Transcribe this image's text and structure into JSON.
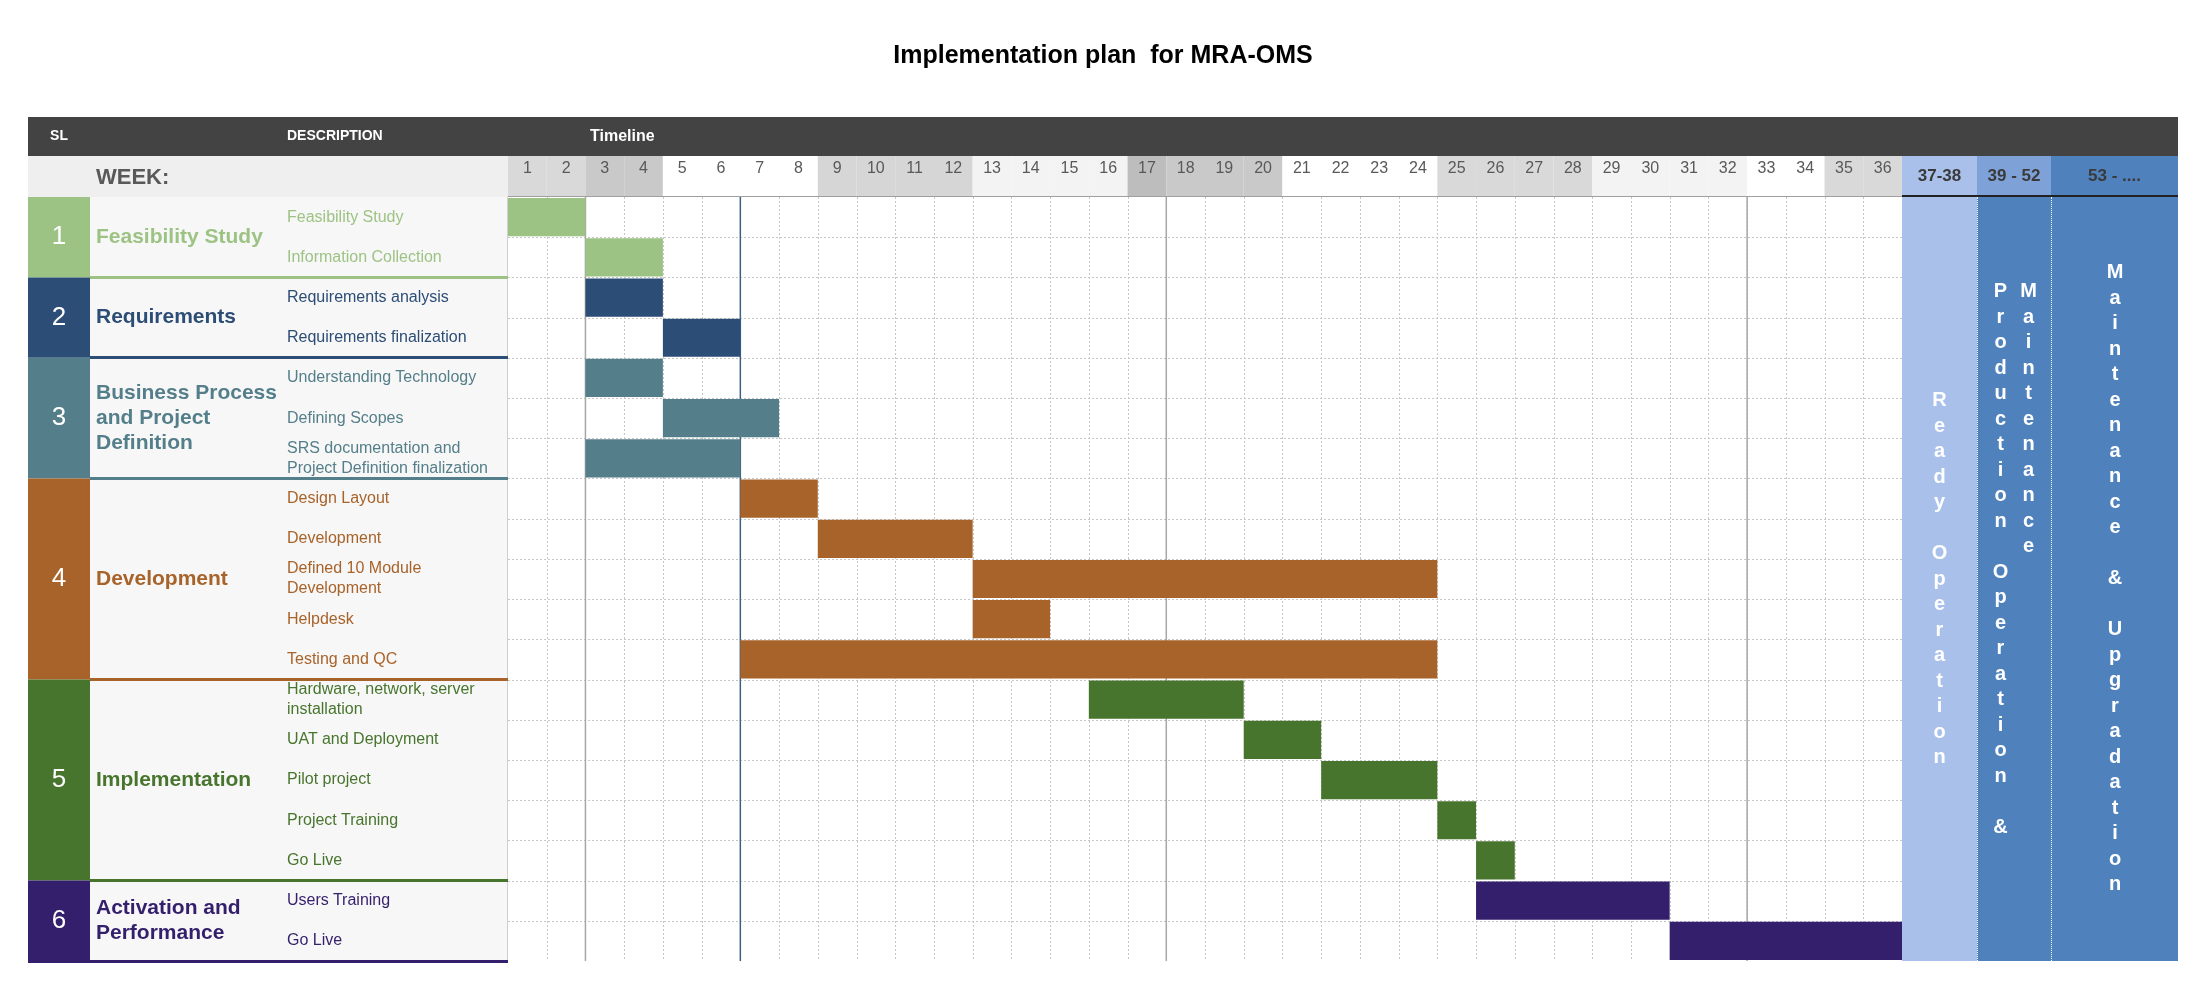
{
  "chart_data": {
    "type": "bar",
    "orientation": "horizontal",
    "title": "Implementation plan  for MRA-OMS",
    "categories": [
      "Feasibility Study",
      "Information Collection",
      "Requirements analysis",
      "Requirements finalization",
      "Understanding Technology",
      "Defining Scopes",
      "SRS documentation and Project Definition finalization",
      "Design Layout",
      "Development",
      "Defined 10 Module Development",
      "Helpdesk",
      "Testing and QC",
      "Hardware, network, server installation",
      "UAT and Deployment",
      "Pilot project",
      "Project Training",
      "Go Live",
      "Users Training",
      "Go Live"
    ],
    "series": [
      {
        "name": "Feasibility Study",
        "color": "#9dc384",
        "base": [
          0.5,
          2.5,
          null,
          null,
          null,
          null,
          null,
          null,
          null,
          null,
          null,
          null,
          null,
          null,
          null,
          null,
          null,
          null,
          null
        ],
        "values": [
          2,
          2,
          null,
          null,
          null,
          null,
          null,
          null,
          null,
          null,
          null,
          null,
          null,
          null,
          null,
          null,
          null,
          null,
          null
        ]
      },
      {
        "name": "Requirements",
        "color": "#2c4d75",
        "base": [
          null,
          null,
          2.5,
          4.5,
          null,
          null,
          null,
          null,
          null,
          null,
          null,
          null,
          null,
          null,
          null,
          null,
          null,
          null,
          null
        ],
        "values": [
          null,
          null,
          2,
          2,
          null,
          null,
          null,
          null,
          null,
          null,
          null,
          null,
          null,
          null,
          null,
          null,
          null,
          null,
          null
        ]
      },
      {
        "name": "Business Process and Project Definition",
        "color": "#547f8a",
        "base": [
          null,
          null,
          null,
          null,
          2.5,
          4.5,
          2.5,
          null,
          null,
          null,
          null,
          null,
          null,
          null,
          null,
          null,
          null,
          null,
          null
        ],
        "values": [
          null,
          null,
          null,
          null,
          2,
          3,
          4,
          null,
          null,
          null,
          null,
          null,
          null,
          null,
          null,
          null,
          null,
          null,
          null
        ]
      },
      {
        "name": "Development",
        "color": "#a8632a",
        "base": [
          null,
          null,
          null,
          null,
          null,
          null,
          null,
          6.5,
          8.5,
          12.5,
          12.5,
          6.5,
          null,
          null,
          null,
          null,
          null,
          null,
          null
        ],
        "values": [
          null,
          null,
          null,
          null,
          null,
          null,
          null,
          2,
          4,
          12,
          2,
          18,
          null,
          null,
          null,
          null,
          null,
          null,
          null
        ]
      },
      {
        "name": "Implementation",
        "color": "#48752d",
        "base": [
          null,
          null,
          null,
          null,
          null,
          null,
          null,
          null,
          null,
          null,
          null,
          null,
          15.5,
          19.5,
          21.5,
          24.5,
          25.5,
          null,
          null
        ],
        "values": [
          null,
          null,
          null,
          null,
          null,
          null,
          null,
          null,
          null,
          null,
          null,
          null,
          4,
          2,
          3,
          1,
          1,
          null,
          null
        ]
      },
      {
        "name": "Activation and Performance",
        "color": "#331f6c",
        "base": [
          null,
          null,
          null,
          null,
          null,
          null,
          null,
          null,
          null,
          null,
          null,
          null,
          null,
          null,
          null,
          null,
          null,
          25.5,
          30.5
        ],
        "values": [
          null,
          null,
          null,
          null,
          null,
          null,
          null,
          null,
          null,
          null,
          null,
          null,
          null,
          null,
          null,
          null,
          null,
          5,
          6
        ]
      }
    ],
    "xlim": [
      0.5,
      36.5
    ],
    "xticks": [
      1,
      2,
      3,
      4,
      5,
      6,
      7,
      8,
      9,
      10,
      11,
      12,
      13,
      14,
      15,
      16,
      17,
      18,
      19,
      20,
      21,
      22,
      23,
      24,
      25,
      26,
      27,
      28,
      29,
      30,
      31,
      32,
      33,
      34,
      35,
      36
    ],
    "grid": true,
    "ref_lines": [
      {
        "axis": "x",
        "value": 2.5,
        "color": "#a6a6a6"
      },
      {
        "axis": "x",
        "value": 6.5,
        "color": "#3d6185"
      },
      {
        "axis": "x",
        "value": 17.5,
        "color": "#a6a6a6"
      },
      {
        "axis": "x",
        "value": 32.5,
        "color": "#a6a6a6"
      }
    ],
    "annotations": [
      "SL",
      "DESCRIPTION",
      "Timeline",
      "WEEK:",
      "1",
      "2",
      "3",
      "4",
      "5",
      "6",
      "37-38",
      "Ready Operation",
      "39 - 52",
      "Production Operation & Maintenance",
      "53 - ....",
      "Maintenance & Upgradation"
    ]
  }
}
